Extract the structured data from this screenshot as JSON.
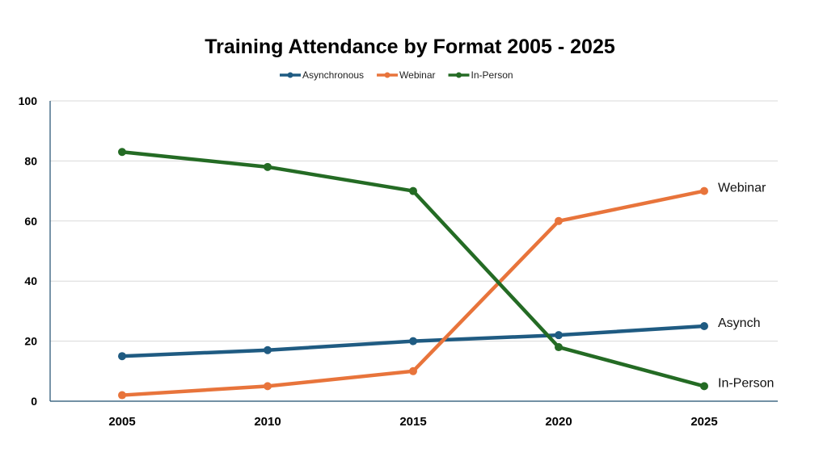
{
  "chart_data": {
    "type": "line",
    "title": "Training Attendance by Format 2005 - 2025",
    "x": [
      "2005",
      "2010",
      "2015",
      "2020",
      "2025"
    ],
    "ylim": [
      0,
      100
    ],
    "yticks": [
      0,
      20,
      40,
      60,
      80,
      100
    ],
    "grid": true,
    "legend_position": "top",
    "series": [
      {
        "name": "Asynchronous",
        "end_label": "Asynch",
        "color": "#1f5b82",
        "values": [
          15,
          17,
          20,
          22,
          25
        ]
      },
      {
        "name": "Webinar",
        "end_label": "Webinar",
        "color": "#e8743b",
        "values": [
          2,
          5,
          10,
          60,
          70
        ]
      },
      {
        "name": "In-Person",
        "end_label": "In-Person",
        "color": "#246b24",
        "values": [
          83,
          78,
          70,
          18,
          5
        ]
      }
    ]
  }
}
